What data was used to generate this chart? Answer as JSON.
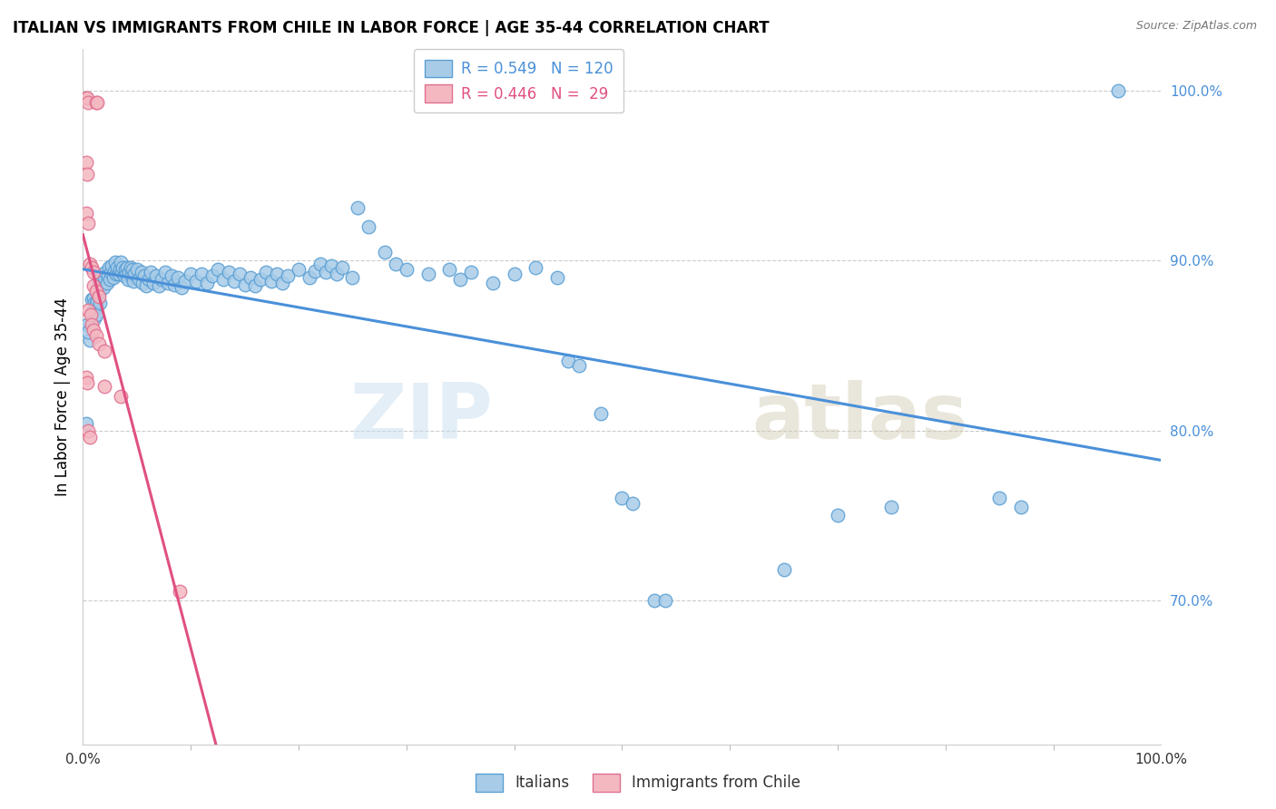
{
  "title": "ITALIAN VS IMMIGRANTS FROM CHILE IN LABOR FORCE | AGE 35-44 CORRELATION CHART",
  "source": "Source: ZipAtlas.com",
  "ylabel": "In Labor Force | Age 35-44",
  "xlim": [
    0.0,
    1.0
  ],
  "ylim": [
    0.615,
    1.025
  ],
  "yticks": [
    0.7,
    0.8,
    0.9,
    1.0
  ],
  "xticks": [
    0.0,
    1.0
  ],
  "xtick_labels": [
    "0.0%",
    "100.0%"
  ],
  "ytick_labels": [
    "70.0%",
    "80.0%",
    "90.0%",
    "100.0%"
  ],
  "watermark_zip": "ZIP",
  "watermark_atlas": "atlas",
  "legend_blue_r": "0.549",
  "legend_blue_n": "120",
  "legend_pink_r": "0.446",
  "legend_pink_n": " 29",
  "blue_color": "#a8cce8",
  "blue_edge_color": "#5a9fd4",
  "pink_color": "#f4b8c1",
  "pink_edge_color": "#e07090",
  "blue_line_color": "#4a90d9",
  "pink_line_color": "#e05080",
  "blue_scatter": [
    [
      0.006,
      0.853
    ],
    [
      0.007,
      0.862
    ],
    [
      0.008,
      0.877
    ],
    [
      0.009,
      0.869
    ],
    [
      0.01,
      0.878
    ],
    [
      0.01,
      0.871
    ],
    [
      0.011,
      0.875
    ],
    [
      0.011,
      0.866
    ],
    [
      0.012,
      0.874
    ],
    [
      0.012,
      0.868
    ],
    [
      0.013,
      0.883
    ],
    [
      0.013,
      0.876
    ],
    [
      0.014,
      0.88
    ],
    [
      0.015,
      0.888
    ],
    [
      0.015,
      0.881
    ],
    [
      0.016,
      0.889
    ],
    [
      0.016,
      0.875
    ],
    [
      0.017,
      0.891
    ],
    [
      0.018,
      0.886
    ],
    [
      0.019,
      0.884
    ],
    [
      0.02,
      0.89
    ],
    [
      0.021,
      0.893
    ],
    [
      0.022,
      0.887
    ],
    [
      0.023,
      0.891
    ],
    [
      0.024,
      0.896
    ],
    [
      0.025,
      0.889
    ],
    [
      0.026,
      0.893
    ],
    [
      0.027,
      0.897
    ],
    [
      0.028,
      0.89
    ],
    [
      0.029,
      0.894
    ],
    [
      0.03,
      0.899
    ],
    [
      0.031,
      0.892
    ],
    [
      0.032,
      0.896
    ],
    [
      0.033,
      0.892
    ],
    [
      0.034,
      0.895
    ],
    [
      0.035,
      0.899
    ],
    [
      0.036,
      0.893
    ],
    [
      0.037,
      0.896
    ],
    [
      0.038,
      0.891
    ],
    [
      0.039,
      0.895
    ],
    [
      0.04,
      0.892
    ],
    [
      0.041,
      0.896
    ],
    [
      0.042,
      0.889
    ],
    [
      0.043,
      0.893
    ],
    [
      0.044,
      0.896
    ],
    [
      0.045,
      0.891
    ],
    [
      0.046,
      0.895
    ],
    [
      0.047,
      0.888
    ],
    [
      0.048,
      0.892
    ],
    [
      0.05,
      0.895
    ],
    [
      0.052,
      0.889
    ],
    [
      0.054,
      0.893
    ],
    [
      0.055,
      0.887
    ],
    [
      0.057,
      0.891
    ],
    [
      0.059,
      0.885
    ],
    [
      0.061,
      0.889
    ],
    [
      0.063,
      0.893
    ],
    [
      0.065,
      0.887
    ],
    [
      0.068,
      0.891
    ],
    [
      0.07,
      0.885
    ],
    [
      0.073,
      0.889
    ],
    [
      0.076,
      0.893
    ],
    [
      0.079,
      0.887
    ],
    [
      0.082,
      0.891
    ],
    [
      0.085,
      0.886
    ],
    [
      0.088,
      0.89
    ],
    [
      0.091,
      0.884
    ],
    [
      0.095,
      0.888
    ],
    [
      0.1,
      0.892
    ],
    [
      0.105,
      0.888
    ],
    [
      0.11,
      0.892
    ],
    [
      0.115,
      0.887
    ],
    [
      0.12,
      0.891
    ],
    [
      0.125,
      0.895
    ],
    [
      0.13,
      0.889
    ],
    [
      0.135,
      0.893
    ],
    [
      0.14,
      0.888
    ],
    [
      0.145,
      0.892
    ],
    [
      0.15,
      0.886
    ],
    [
      0.155,
      0.89
    ],
    [
      0.16,
      0.885
    ],
    [
      0.165,
      0.889
    ],
    [
      0.17,
      0.893
    ],
    [
      0.175,
      0.888
    ],
    [
      0.18,
      0.892
    ],
    [
      0.185,
      0.887
    ],
    [
      0.19,
      0.891
    ],
    [
      0.2,
      0.895
    ],
    [
      0.21,
      0.89
    ],
    [
      0.215,
      0.894
    ],
    [
      0.22,
      0.898
    ],
    [
      0.225,
      0.893
    ],
    [
      0.23,
      0.897
    ],
    [
      0.235,
      0.892
    ],
    [
      0.24,
      0.896
    ],
    [
      0.25,
      0.89
    ],
    [
      0.255,
      0.931
    ],
    [
      0.265,
      0.92
    ],
    [
      0.28,
      0.905
    ],
    [
      0.29,
      0.898
    ],
    [
      0.3,
      0.895
    ],
    [
      0.32,
      0.892
    ],
    [
      0.34,
      0.895
    ],
    [
      0.35,
      0.889
    ],
    [
      0.36,
      0.893
    ],
    [
      0.38,
      0.887
    ],
    [
      0.4,
      0.892
    ],
    [
      0.42,
      0.896
    ],
    [
      0.44,
      0.89
    ],
    [
      0.45,
      0.841
    ],
    [
      0.46,
      0.838
    ],
    [
      0.48,
      0.81
    ],
    [
      0.5,
      0.76
    ],
    [
      0.51,
      0.757
    ],
    [
      0.53,
      0.7
    ],
    [
      0.54,
      0.7
    ],
    [
      0.65,
      0.718
    ],
    [
      0.7,
      0.75
    ],
    [
      0.75,
      0.755
    ],
    [
      0.85,
      0.76
    ],
    [
      0.87,
      0.755
    ],
    [
      0.96,
      1.0
    ],
    [
      0.004,
      0.862
    ],
    [
      0.005,
      0.858
    ],
    [
      0.003,
      0.804
    ]
  ],
  "pink_scatter": [
    [
      0.003,
      0.996
    ],
    [
      0.004,
      0.996
    ],
    [
      0.005,
      0.993
    ],
    [
      0.012,
      0.993
    ],
    [
      0.013,
      0.993
    ],
    [
      0.003,
      0.958
    ],
    [
      0.004,
      0.951
    ],
    [
      0.003,
      0.928
    ],
    [
      0.005,
      0.922
    ],
    [
      0.006,
      0.898
    ],
    [
      0.008,
      0.896
    ],
    [
      0.01,
      0.893
    ],
    [
      0.01,
      0.885
    ],
    [
      0.012,
      0.882
    ],
    [
      0.015,
      0.879
    ],
    [
      0.005,
      0.871
    ],
    [
      0.007,
      0.868
    ],
    [
      0.008,
      0.862
    ],
    [
      0.01,
      0.859
    ],
    [
      0.012,
      0.856
    ],
    [
      0.015,
      0.851
    ],
    [
      0.02,
      0.847
    ],
    [
      0.003,
      0.831
    ],
    [
      0.004,
      0.828
    ],
    [
      0.02,
      0.826
    ],
    [
      0.035,
      0.82
    ],
    [
      0.005,
      0.8
    ],
    [
      0.006,
      0.796
    ],
    [
      0.09,
      0.705
    ]
  ]
}
